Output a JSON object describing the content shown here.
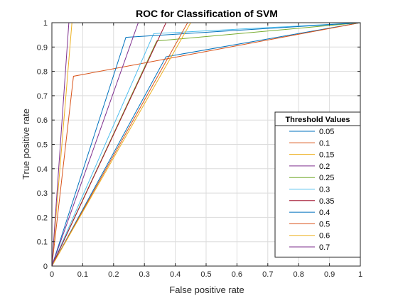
{
  "chart_data": {
    "type": "line",
    "title": "ROC for Classification of SVM",
    "xlabel": "False positive rate",
    "ylabel": "True positive rate",
    "xlim": [
      0,
      1
    ],
    "ylim": [
      0,
      1
    ],
    "xticks": [
      0,
      0.1,
      0.2,
      0.3,
      0.4,
      0.5,
      0.6,
      0.7,
      0.8,
      0.9,
      1
    ],
    "yticks": [
      0,
      0.1,
      0.2,
      0.3,
      0.4,
      0.5,
      0.6,
      0.7,
      0.8,
      0.9,
      1
    ],
    "xtick_labels": [
      "0",
      "0.1",
      "0.2",
      "0.3",
      "0.4",
      "0.5",
      "0.6",
      "0.7",
      "0.8",
      "0.9",
      "1"
    ],
    "ytick_labels": [
      "0",
      "0.1",
      "0.2",
      "0.3",
      "0.4",
      "0.5",
      "0.6",
      "0.7",
      "0.8",
      "0.9",
      "1"
    ],
    "grid": true,
    "legend": {
      "title": "Threshold Values",
      "placement": "bottom-right"
    },
    "series": [
      {
        "name": "0.05",
        "color": "#0072BD",
        "x": [
          0,
          0.37,
          1
        ],
        "y": [
          0,
          0.86,
          1
        ]
      },
      {
        "name": "0.1",
        "color": "#D95319",
        "x": [
          0,
          0.07,
          1
        ],
        "y": [
          0,
          0.78,
          1
        ]
      },
      {
        "name": "0.15",
        "color": "#EDB120",
        "x": [
          0,
          0.065,
          1
        ],
        "y": [
          0,
          1,
          1
        ]
      },
      {
        "name": "0.2",
        "color": "#7E2F8E",
        "x": [
          0,
          0.055,
          1
        ],
        "y": [
          0,
          1,
          1
        ]
      },
      {
        "name": "0.25",
        "color": "#77AC30",
        "x": [
          0,
          0.34,
          1
        ],
        "y": [
          0,
          0.925,
          1
        ]
      },
      {
        "name": "0.3",
        "color": "#4DBEEE",
        "x": [
          0,
          0.33,
          1
        ],
        "y": [
          0,
          0.955,
          1
        ]
      },
      {
        "name": "0.35",
        "color": "#A2142F",
        "x": [
          0,
          0.37,
          1
        ],
        "y": [
          0,
          1,
          1
        ]
      },
      {
        "name": "0.4",
        "color": "#0072BD",
        "x": [
          0,
          0.24,
          1
        ],
        "y": [
          0,
          0.94,
          1
        ]
      },
      {
        "name": "0.5",
        "color": "#D95319",
        "x": [
          0,
          0.44,
          1
        ],
        "y": [
          0,
          1,
          1
        ]
      },
      {
        "name": "0.6",
        "color": "#EDB120",
        "x": [
          0,
          0.45,
          1
        ],
        "y": [
          0,
          1,
          1
        ]
      },
      {
        "name": "0.7",
        "color": "#7E2F8E",
        "x": [
          0,
          0.28,
          1
        ],
        "y": [
          0,
          1,
          1
        ]
      }
    ]
  }
}
